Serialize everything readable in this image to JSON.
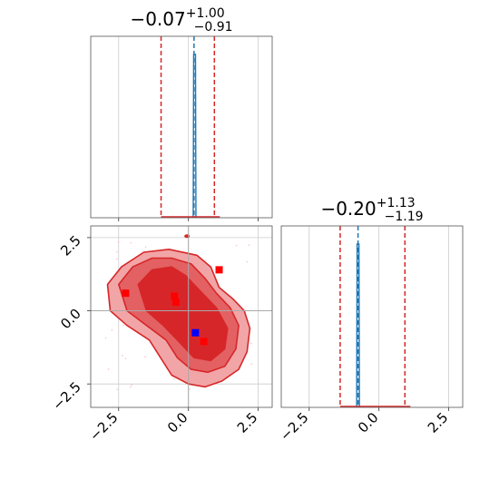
{
  "chart_data": [
    {
      "type": "histogram",
      "panel": "marginal-param-1",
      "title": {
        "median": "−0.07",
        "plus": "+1.00",
        "minus": "−0.91"
      },
      "xlim": [
        -3.5,
        3.0
      ],
      "xticks": [
        -2.5,
        0.0,
        2.5
      ],
      "grid": true,
      "quantile_lines": [
        -0.98,
        -0.07,
        0.93
      ],
      "truth_line": 0.2,
      "peak_x": 0.22,
      "colors": {
        "quantile": "#d62728",
        "truth": "#1f77b4",
        "fill": "#d62728"
      }
    },
    {
      "type": "histogram",
      "panel": "marginal-param-2",
      "title": {
        "median": "−0.20",
        "plus": "+1.13",
        "minus": "−1.19"
      },
      "xlim": [
        -3.5,
        3.0
      ],
      "xticks": [
        -2.5,
        0.0,
        2.5
      ],
      "xticklabels": [
        "−2.5",
        "0.0",
        "2.5"
      ],
      "grid": true,
      "quantile_lines": [
        -1.39,
        -0.2,
        0.93
      ],
      "truth_line": -0.75,
      "peak_x": -0.75,
      "colors": {
        "quantile": "#d62728",
        "truth": "#1f77b4",
        "fill": "#d62728"
      }
    },
    {
      "type": "contour",
      "panel": "joint-param-1-param-2",
      "xlim": [
        -3.5,
        3.0
      ],
      "ylim": [
        -3.3,
        2.9
      ],
      "xticks": [
        -2.5,
        0.0,
        2.5
      ],
      "yticks": [
        -2.5,
        0.0,
        2.5
      ],
      "xticklabels": [
        "−2.5",
        "0.0",
        "2.5"
      ],
      "yticklabels": [
        "−2.5",
        "0.0",
        "2.5"
      ],
      "grid": true,
      "crosshair": {
        "x": 0.0,
        "y": 0.0
      },
      "contour_levels": [
        {
          "name": "outer",
          "polygon": [
            [
              -2.9,
              0.9
            ],
            [
              -2.4,
              1.5
            ],
            [
              -1.6,
              2.0
            ],
            [
              -0.7,
              2.1
            ],
            [
              0.3,
              1.9
            ],
            [
              0.8,
              1.5
            ],
            [
              1.1,
              0.8
            ],
            [
              1.6,
              0.4
            ],
            [
              2.0,
              0.0
            ],
            [
              2.2,
              -0.6
            ],
            [
              2.1,
              -1.4
            ],
            [
              1.8,
              -2.0
            ],
            [
              1.2,
              -2.4
            ],
            [
              0.6,
              -2.6
            ],
            [
              0.0,
              -2.5
            ],
            [
              -0.6,
              -2.2
            ],
            [
              -1.0,
              -1.6
            ],
            [
              -1.4,
              -1.0
            ],
            [
              -2.2,
              -0.5
            ],
            [
              -2.8,
              0.0
            ]
          ],
          "fill": "#f2a5a7"
        },
        {
          "name": "middle",
          "polygon": [
            [
              -2.5,
              0.9
            ],
            [
              -2.0,
              1.5
            ],
            [
              -1.3,
              1.8
            ],
            [
              -0.6,
              1.8
            ],
            [
              0.1,
              1.6
            ],
            [
              0.6,
              1.1
            ],
            [
              1.0,
              0.6
            ],
            [
              1.5,
              0.1
            ],
            [
              1.8,
              -0.5
            ],
            [
              1.7,
              -1.3
            ],
            [
              1.3,
              -1.9
            ],
            [
              0.7,
              -2.1
            ],
            [
              0.1,
              -2.0
            ],
            [
              -0.4,
              -1.6
            ],
            [
              -0.8,
              -1.0
            ],
            [
              -1.5,
              -0.5
            ],
            [
              -2.2,
              0.0
            ]
          ],
          "fill": "#e36163"
        },
        {
          "name": "inner",
          "polygon": [
            [
              -1.8,
              0.9
            ],
            [
              -1.3,
              1.4
            ],
            [
              -0.6,
              1.5
            ],
            [
              -0.1,
              1.2
            ],
            [
              0.4,
              0.7
            ],
            [
              1.0,
              0.1
            ],
            [
              1.4,
              -0.6
            ],
            [
              1.3,
              -1.3
            ],
            [
              0.8,
              -1.7
            ],
            [
              0.2,
              -1.6
            ],
            [
              -0.3,
              -1.1
            ],
            [
              -0.9,
              -0.5
            ],
            [
              -1.5,
              0.0
            ]
          ],
          "fill": "#d7262a"
        }
      ],
      "points": [
        {
          "x": -2.25,
          "y": 0.6,
          "color": "red"
        },
        {
          "x": -0.5,
          "y": 0.5,
          "color": "red"
        },
        {
          "x": -0.45,
          "y": 0.3,
          "color": "red"
        },
        {
          "x": 1.1,
          "y": 1.4,
          "color": "red"
        },
        {
          "x": 0.55,
          "y": -1.05,
          "color": "red"
        },
        {
          "x": 0.25,
          "y": -0.75,
          "color": "blue"
        }
      ],
      "outlier_blob": {
        "x": -0.05,
        "y": 2.55
      }
    }
  ]
}
